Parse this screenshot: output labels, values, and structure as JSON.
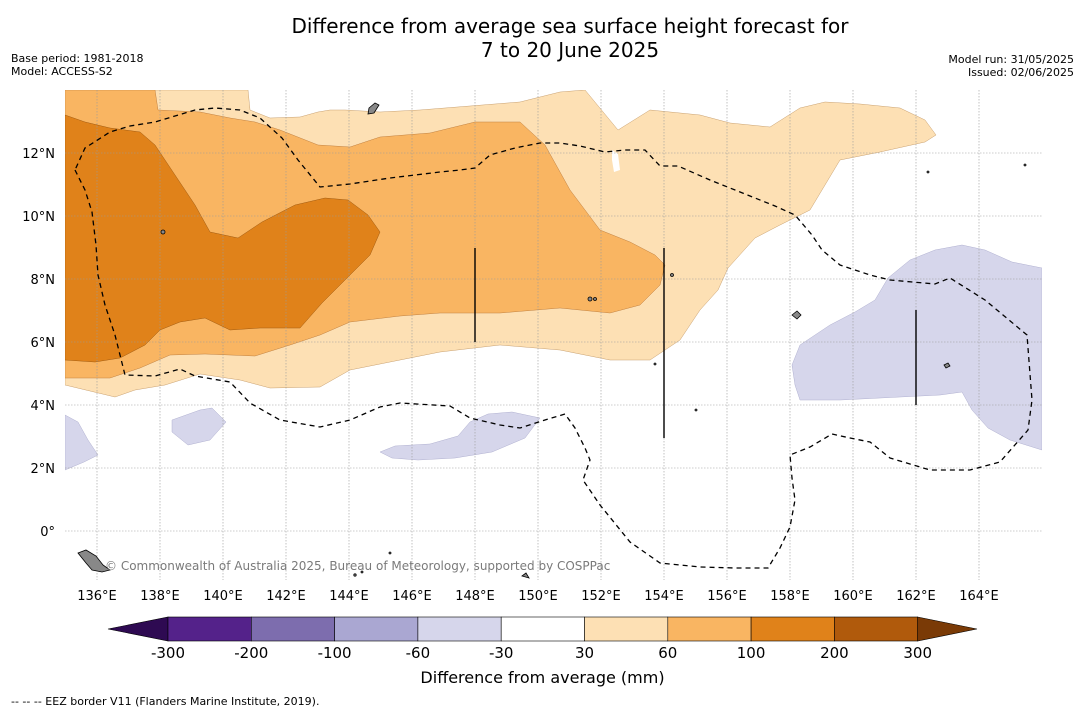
{
  "title_line1": "Difference from average sea surface height forecast for",
  "title_line2": "7 to 20 June 2025",
  "base_period": "Base period: 1981-2018",
  "model": "Model: ACCESS-S2",
  "model_run": "Model run: 31/05/2025",
  "issued": "Issued: 02/06/2025",
  "lat_labels": [
    "12°N",
    "10°N",
    "8°N",
    "6°N",
    "4°N",
    "2°N",
    "0°"
  ],
  "lon_labels": [
    "136°E",
    "138°E",
    "140°E",
    "142°E",
    "144°E",
    "146°E",
    "148°E",
    "150°E",
    "152°E",
    "154°E",
    "156°E",
    "158°E",
    "160°E",
    "162°E",
    "164°E"
  ],
  "copyright": "© Commonwealth of Australia 2025, Bureau of Meteorology, supported by COSPPac",
  "colorbar": {
    "ticks": [
      "-300",
      "-200",
      "-100",
      "-60",
      "-30",
      "30",
      "60",
      "100",
      "200",
      "300"
    ],
    "colors": [
      "#2e0a52",
      "#54228a",
      "#7d6dae",
      "#aaa7d2",
      "#d6d6eb",
      "#ffffff",
      "#fde0b4",
      "#f9b562",
      "#e0821a",
      "#b05a0c",
      "#7a3a06"
    ],
    "label": "Difference from average (mm)"
  },
  "footnote": "--  --  -- EEZ border V11 (Flanders Marine Institute, 2019)."
}
